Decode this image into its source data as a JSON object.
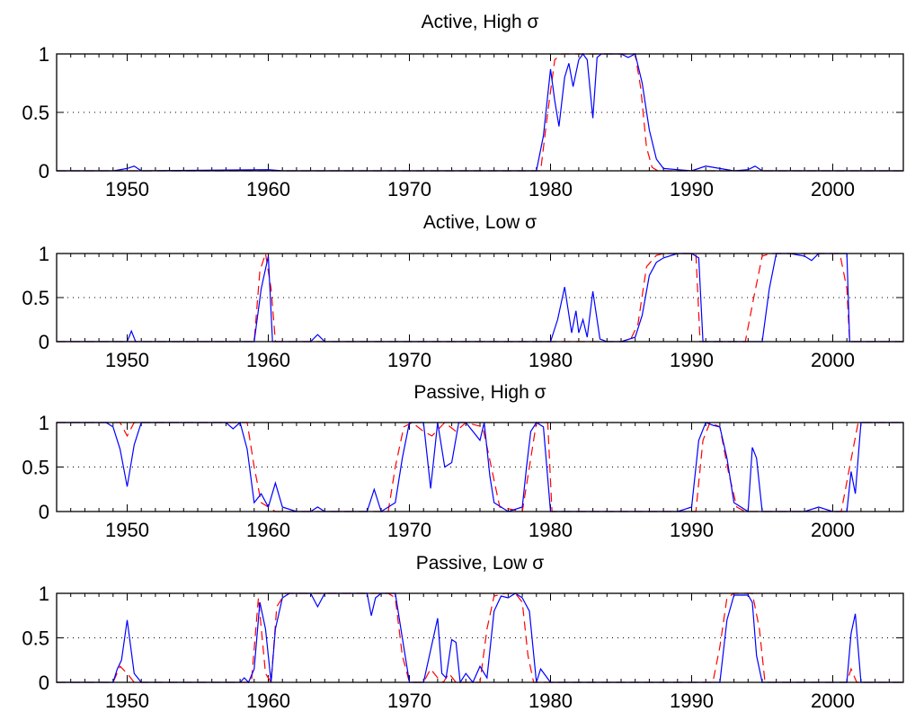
{
  "chart_data": [
    {
      "type": "line",
      "title": "Active, High σ",
      "xlim": [
        1945,
        2005
      ],
      "ylim": [
        0,
        1
      ],
      "xticks": [
        "1950",
        "1960",
        "1970",
        "1980",
        "1990",
        "2000"
      ],
      "yticks": [
        "0",
        "0.5",
        "1"
      ],
      "grid": "horizontal dotted",
      "series": [
        {
          "color": "#0000ff",
          "style": "solid",
          "x": [
            1945,
            1949,
            1950,
            1950.5,
            1951,
            1960,
            1961,
            1979,
            1979.5,
            1980,
            1980.3,
            1980.6,
            1981,
            1981.3,
            1981.6,
            1982,
            1982.3,
            1982.6,
            1983,
            1983.3,
            1983.6,
            1984,
            1985,
            1985.5,
            1986,
            1986.5,
            1987,
            1987.5,
            1988,
            1989,
            1990,
            1991,
            1992,
            1993,
            1994,
            1994.5,
            1995,
            2005
          ],
          "y": [
            0,
            0,
            0.02,
            0.04,
            0,
            0.01,
            0,
            0,
            0.3,
            0.87,
            0.6,
            0.38,
            0.8,
            0.92,
            0.72,
            0.95,
            1,
            0.95,
            0.45,
            0.97,
            1,
            1,
            1,
            0.97,
            1,
            0.75,
            0.35,
            0.1,
            0.02,
            0.01,
            0,
            0.04,
            0.02,
            0,
            0.01,
            0.04,
            0,
            0
          ]
        },
        {
          "color": "#ff0000",
          "style": "dashed",
          "x": [
            1945,
            1979.3,
            1979.8,
            1980.3,
            1980.8,
            1981.5,
            1986,
            1986.4,
            1986.8,
            1987.2,
            1987.6,
            2005
          ],
          "y": [
            0,
            0,
            0.5,
            0.95,
            1,
            1,
            1,
            0.7,
            0.2,
            0.03,
            0,
            0
          ]
        }
      ]
    },
    {
      "type": "line",
      "title": "Active, Low σ",
      "xlim": [
        1945,
        2005
      ],
      "ylim": [
        0,
        1
      ],
      "xticks": [
        "1950",
        "1960",
        "1970",
        "1980",
        "1990",
        "2000"
      ],
      "yticks": [
        "0",
        "0.5",
        "1"
      ],
      "grid": "horizontal dotted",
      "series": [
        {
          "color": "#0000ff",
          "style": "solid",
          "x": [
            1945,
            1950,
            1950.3,
            1950.6,
            1959,
            1959.5,
            1960,
            1960.3,
            1961,
            1963,
            1963.5,
            1964,
            1980,
            1980.5,
            1981,
            1981.5,
            1981.8,
            1982,
            1982.3,
            1982.6,
            1983,
            1983.5,
            1984,
            1985,
            1986,
            1986.5,
            1987,
            1987.5,
            1988,
            1989,
            1990,
            1990.5,
            1990.8,
            1995,
            1995.5,
            1996,
            1997,
            1998,
            1998.5,
            1999,
            2000,
            2001,
            2001.2,
            2005
          ],
          "y": [
            0,
            0,
            0.12,
            0,
            0,
            0.6,
            0.97,
            0,
            0,
            0,
            0.08,
            0,
            0,
            0.25,
            0.62,
            0.1,
            0.35,
            0.1,
            0.25,
            0.05,
            0.57,
            0.03,
            0,
            0,
            0.05,
            0.3,
            0.75,
            0.9,
            0.95,
            1,
            1,
            0.95,
            0,
            0,
            0.6,
            1,
            1,
            0.97,
            0.92,
            1,
            1,
            1,
            0,
            0
          ]
        },
        {
          "color": "#ff0000",
          "style": "dashed",
          "x": [
            1945,
            1959,
            1959.4,
            1959.8,
            1960.2,
            1960.5,
            1985.6,
            1986.2,
            1986.8,
            1987.5,
            1988,
            1990.3,
            1990.6,
            1993.8,
            1994.4,
            1995,
            1995.6,
            2000.5,
            2001,
            2001.2,
            2005
          ],
          "y": [
            0,
            0,
            0.8,
            1,
            0.6,
            0,
            0,
            0.2,
            0.85,
            0.98,
            1,
            1,
            0,
            0,
            0.5,
            0.97,
            1,
            1,
            0.6,
            0,
            0
          ]
        }
      ]
    },
    {
      "type": "line",
      "title": "Passive, High σ",
      "xlim": [
        1945,
        2005
      ],
      "ylim": [
        0,
        1
      ],
      "xticks": [
        "1950",
        "1960",
        "1970",
        "1980",
        "1990",
        "2000"
      ],
      "yticks": [
        "0",
        "0.5",
        "1"
      ],
      "grid": "horizontal dotted",
      "series": [
        {
          "color": "#0000ff",
          "style": "solid",
          "x": [
            1945,
            1948.5,
            1949,
            1949.5,
            1950,
            1950.5,
            1951,
            1957,
            1957.5,
            1958,
            1958.5,
            1959,
            1959.5,
            1960,
            1960.5,
            1961,
            1962,
            1963,
            1963.5,
            1964,
            1965,
            1967,
            1967.5,
            1968,
            1969,
            1969.5,
            1970,
            1971,
            1971.5,
            1972,
            1972.5,
            1973,
            1973.5,
            1974,
            1975,
            1975.3,
            1975.7,
            1976,
            1976.5,
            1977,
            1978,
            1978.3,
            1978.6,
            1979,
            1979.5,
            1980,
            1980.2,
            1989,
            1990,
            1990.5,
            1991,
            1991.5,
            1992,
            1992.5,
            1993,
            1994,
            1994.3,
            1994.6,
            1995,
            1996,
            1998,
            1999,
            2000,
            2001,
            2001.3,
            2001.6,
            2002,
            2005
          ],
          "y": [
            1,
            1,
            0.95,
            0.7,
            0.28,
            0.75,
            1,
            1,
            0.93,
            1,
            0.7,
            0.1,
            0.2,
            0.05,
            0.32,
            0.05,
            0,
            0,
            0.05,
            0,
            0,
            0,
            0.25,
            0,
            0.1,
            0.6,
            1,
            1,
            0.26,
            1,
            0.5,
            0.55,
            1,
            1,
            0.8,
            1,
            0.4,
            0.1,
            0.05,
            0,
            0.05,
            0.5,
            0.9,
            1,
            0.95,
            0,
            0,
            0,
            0.05,
            0.8,
            1,
            0.97,
            0.95,
            0.6,
            0.1,
            0,
            0.72,
            0.6,
            0,
            0,
            0,
            0.05,
            0,
            0,
            0.45,
            0.2,
            1,
            1
          ]
        },
        {
          "color": "#ff0000",
          "style": "dashed",
          "x": [
            1945,
            1949.5,
            1950,
            1950.5,
            1951,
            1958.5,
            1959,
            1959.5,
            1960,
            1960.5,
            1968.5,
            1969,
            1969.6,
            1970.2,
            1971,
            1971.6,
            1972.5,
            1973.3,
            1974,
            1975.2,
            1975.8,
            1976.4,
            1978,
            1978.5,
            1979,
            1979.8,
            1980.1,
            1990.3,
            1990.8,
            1991.3,
            1992,
            1992.6,
            1993.2,
            1993.8,
            2000.6,
            2001.2,
            2001.8,
            2005
          ],
          "y": [
            1,
            1,
            0.85,
            1,
            1,
            1,
            0.5,
            0.1,
            0.05,
            0,
            0,
            0.5,
            0.95,
            1,
            0.9,
            0.85,
            1,
            0.9,
            1,
            0.95,
            0.5,
            0.05,
            0,
            0.5,
            1,
            1,
            0,
            0,
            0.8,
            1,
            0.95,
            0.45,
            0.05,
            0,
            0,
            0.5,
            1,
            1
          ]
        }
      ]
    },
    {
      "type": "line",
      "title": "Passive, Low σ",
      "xlim": [
        1945,
        2005
      ],
      "ylim": [
        0,
        1
      ],
      "xticks": [
        "1950",
        "1960",
        "1970",
        "1980",
        "1990",
        "2000"
      ],
      "yticks": [
        "0",
        "0.5",
        "1"
      ],
      "grid": "horizontal dotted",
      "series": [
        {
          "color": "#0000ff",
          "style": "solid",
          "x": [
            1945,
            1949,
            1949.3,
            1949.6,
            1950,
            1950.5,
            1951,
            1958,
            1958.3,
            1958.6,
            1959,
            1959.4,
            1959.8,
            1960.2,
            1960.5,
            1961,
            1961.5,
            1963,
            1963.5,
            1964,
            1966,
            1967,
            1967.3,
            1967.6,
            1968,
            1969,
            1969.5,
            1970,
            1971,
            1972,
            1972.3,
            1972.6,
            1973,
            1973.3,
            1973.6,
            1974,
            1974.5,
            1975,
            1975.5,
            1976,
            1976.5,
            1977,
            1977.5,
            1978,
            1978.5,
            1979,
            1979.3,
            1980,
            1992,
            1992.5,
            1993,
            1994,
            1994.3,
            1994.6,
            1995,
            2001,
            2001.3,
            2001.6,
            2002,
            2005
          ],
          "y": [
            0,
            0,
            0.15,
            0.25,
            0.7,
            0.1,
            0,
            0,
            0.05,
            0,
            0.15,
            0.9,
            0.6,
            0,
            0.6,
            0.95,
            1,
            1,
            0.85,
            1,
            1,
            1,
            0.75,
            0.95,
            1,
            1,
            0.5,
            0,
            0,
            0.72,
            0.1,
            0.05,
            0.48,
            0.45,
            0,
            0.1,
            0,
            0.18,
            0.05,
            0.8,
            0.97,
            0.95,
            1,
            0.95,
            0.8,
            0,
            0.15,
            0,
            0,
            0.7,
            0.98,
            0.98,
            0.9,
            0.3,
            0,
            0,
            0.55,
            0.77,
            0,
            0
          ]
        },
        {
          "color": "#ff0000",
          "style": "dashed",
          "x": [
            1945,
            1949,
            1949.5,
            1950,
            1950.5,
            1958.8,
            1959.3,
            1959.8,
            1960.2,
            1960.6,
            1961.2,
            1961.8,
            1968.5,
            1969,
            1969.5,
            1970,
            1971,
            1971.5,
            1972,
            1972.4,
            1972.8,
            1973.3,
            1975,
            1975.5,
            1976,
            1976.8,
            1977.5,
            1978,
            1978.4,
            1978.8,
            1991.5,
            1992,
            1992.5,
            1993,
            1994.3,
            1994.8,
            1995.2,
            2001,
            2001.3,
            2001.7,
            2005
          ],
          "y": [
            0,
            0,
            0.18,
            0.1,
            0,
            0,
            0.95,
            0.1,
            0,
            0.85,
            1,
            1,
            1,
            0.95,
            0.3,
            0,
            0,
            0.15,
            0.05,
            0,
            0.1,
            0,
            0,
            0.6,
            0.97,
            1,
            1,
            0.9,
            0.3,
            0,
            0,
            0.4,
            0.95,
            1,
            1,
            0.6,
            0,
            0,
            0.15,
            0,
            0
          ]
        }
      ]
    }
  ]
}
